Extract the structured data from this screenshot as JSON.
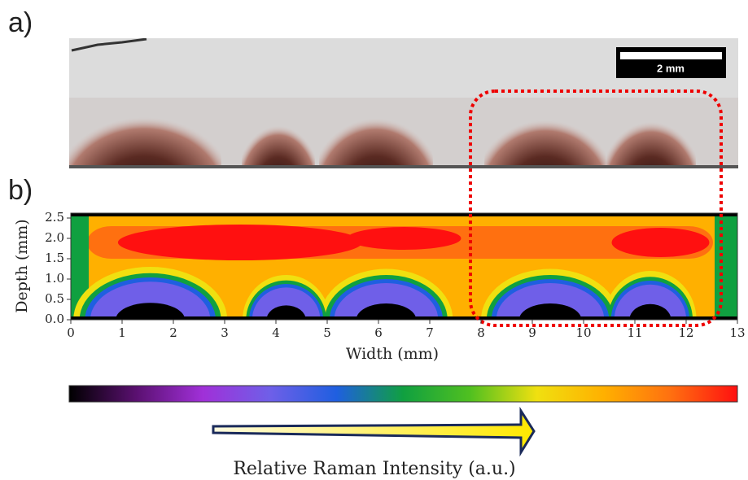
{
  "chart_data": {
    "type": "heatmap",
    "panel_labels": [
      "a)",
      "b)"
    ],
    "scale_bar": "2 mm",
    "xlabel": "Width (mm)",
    "ylabel": "Depth (mm)",
    "xlim": [
      0,
      13
    ],
    "xticks": [
      0,
      1,
      2,
      3,
      4,
      5,
      6,
      7,
      8,
      9,
      10,
      11,
      12,
      13
    ],
    "ylim": [
      0,
      2.62
    ],
    "yticks": [
      {
        "value": 0,
        "label": "0.0"
      },
      0.5,
      {
        "value": 1,
        "label": "1.0"
      },
      1.5,
      {
        "value": 2,
        "label": "2.0"
      },
      2.5
    ],
    "colormap": [
      "#000000",
      "#5a1070",
      "#a030d8",
      "#6f5fe8",
      "#1f5fe0",
      "#10a040",
      "#50c020",
      "#f0e010",
      "#ffb000",
      "#ff7010",
      "#ff1010"
    ],
    "colorbar_label": "Relative Raman Intensity (a.u.)"
  }
}
